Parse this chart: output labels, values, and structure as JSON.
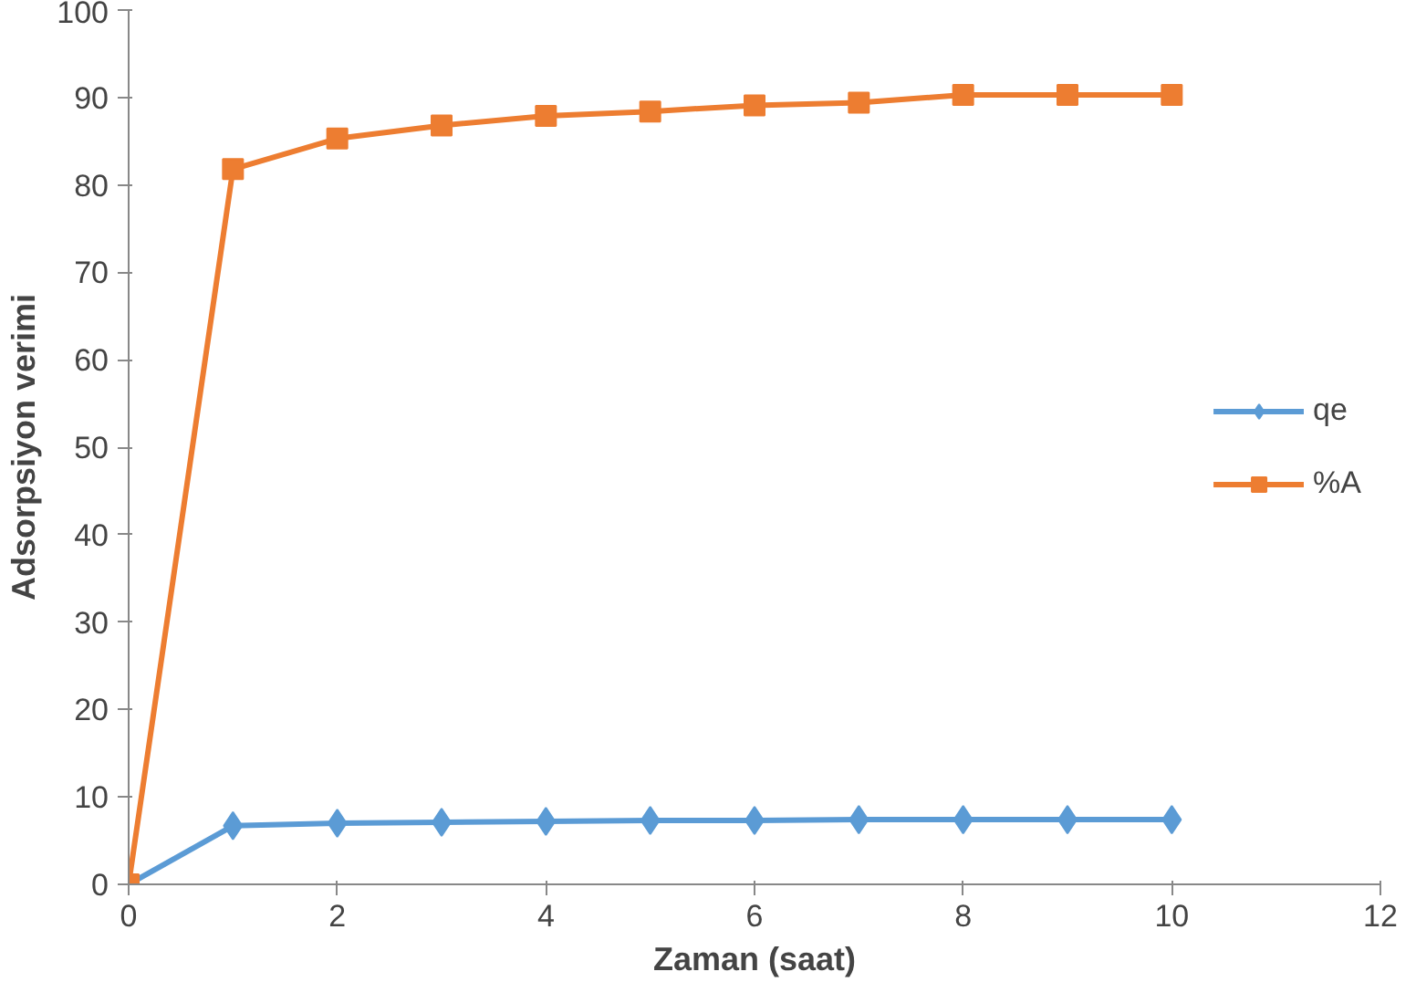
{
  "chart_data": {
    "type": "line",
    "xlabel": "Zaman (saat)",
    "ylabel": "Adsorpsiyon verimi",
    "x": [
      0,
      1,
      2,
      3,
      4,
      5,
      6,
      7,
      8,
      9,
      10
    ],
    "xlim": [
      0,
      12
    ],
    "xticks": [
      0,
      2,
      4,
      6,
      8,
      10,
      12
    ],
    "ylim": [
      0,
      100
    ],
    "yticks": [
      0,
      10,
      20,
      30,
      40,
      50,
      60,
      70,
      80,
      90,
      100
    ],
    "grid": false,
    "legend": "right",
    "line_style": "solid",
    "series": [
      {
        "name": "qe",
        "color": "#5b9bd5",
        "marker": "diamond",
        "values": [
          0,
          6.7,
          7.0,
          7.1,
          7.2,
          7.3,
          7.3,
          7.4,
          7.4,
          7.4,
          7.4
        ]
      },
      {
        "name": "%A",
        "color": "#ed7d31",
        "marker": "square",
        "values": [
          0,
          81.8,
          85.3,
          86.8,
          87.9,
          88.4,
          89.1,
          89.4,
          90.3,
          90.3,
          90.3
        ]
      }
    ]
  }
}
